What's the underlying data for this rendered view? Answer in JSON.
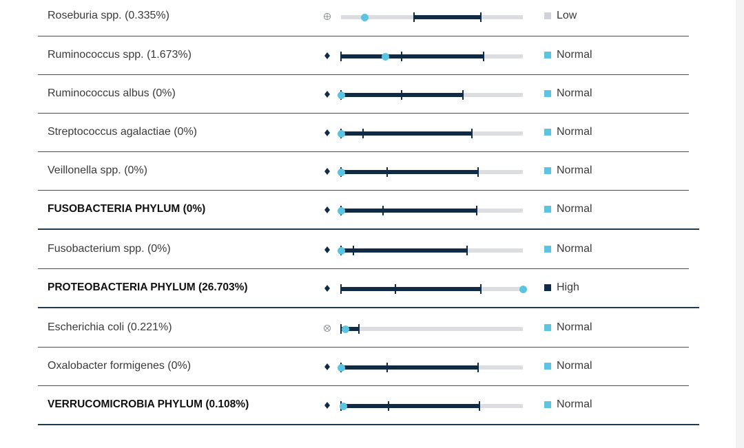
{
  "colors": {
    "low": "#d2d3d8",
    "normal": "#5cc4e0",
    "high": "#0f2b45",
    "range": "#0f2b45",
    "track": "#dcdde0",
    "marker": "#5cc4e0"
  },
  "rows": [
    {
      "name": "Roseburia spp. (0.335%)",
      "bold": false,
      "icon": "circle-plus-icon",
      "range": [
        0.4,
        0.77
      ],
      "median": 0.4,
      "marker": 0.13,
      "status": "Low"
    },
    {
      "name": "Ruminococcus spp. (1.673%)",
      "bold": false,
      "icon": "diamond-icon",
      "range": [
        0.0,
        0.785
      ],
      "median": 0.335,
      "marker": 0.245,
      "status": "Normal"
    },
    {
      "name": "Ruminococcus albus (0%)",
      "bold": false,
      "icon": "diamond-icon",
      "range": [
        0.0,
        0.67
      ],
      "median": 0.335,
      "marker": 0.0,
      "status": "Normal"
    },
    {
      "name": "Streptococcus agalactiae (0%)",
      "bold": false,
      "icon": "diamond-icon",
      "range": [
        0.0,
        0.72
      ],
      "median": 0.12,
      "marker": 0.0,
      "status": "Normal"
    },
    {
      "name": "Veillonella spp. (0%)",
      "bold": false,
      "icon": "diamond-icon",
      "range": [
        0.0,
        0.755
      ],
      "median": 0.255,
      "marker": 0.0,
      "status": "Normal"
    },
    {
      "name": "FUSOBACTERIA PHYLUM (0%)",
      "bold": true,
      "icon": "diamond-icon",
      "range": [
        0.0,
        0.745
      ],
      "median": 0.23,
      "marker": 0.0,
      "status": "Normal"
    },
    {
      "name": "Fusobacterium spp. (0%)",
      "bold": false,
      "icon": "diamond-icon",
      "range": [
        0.0,
        0.695
      ],
      "median": 0.07,
      "marker": 0.0,
      "status": "Normal"
    },
    {
      "name": "PROTEOBACTERIA PHYLUM (26.703%)",
      "bold": true,
      "icon": "diamond-icon",
      "range": [
        0.0,
        0.77
      ],
      "median": 0.3,
      "marker": 1.0,
      "status": "High"
    },
    {
      "name": "Escherichia coli (0.221%)",
      "bold": false,
      "icon": "circle-x-icon",
      "range": [
        0.0,
        0.1
      ],
      "median": 0.1,
      "marker": 0.025,
      "status": "Normal"
    },
    {
      "name": "Oxalobacter formigenes (0%)",
      "bold": false,
      "icon": "diamond-icon",
      "range": [
        0.0,
        0.755
      ],
      "median": 0.255,
      "marker": 0.0,
      "status": "Normal"
    },
    {
      "name": "VERRUCOMICROBIA PHYLUM (0.108%)",
      "bold": true,
      "icon": "diamond-icon",
      "range": [
        0.0,
        0.76
      ],
      "median": 0.263,
      "marker": 0.015,
      "status": "Normal"
    }
  ]
}
